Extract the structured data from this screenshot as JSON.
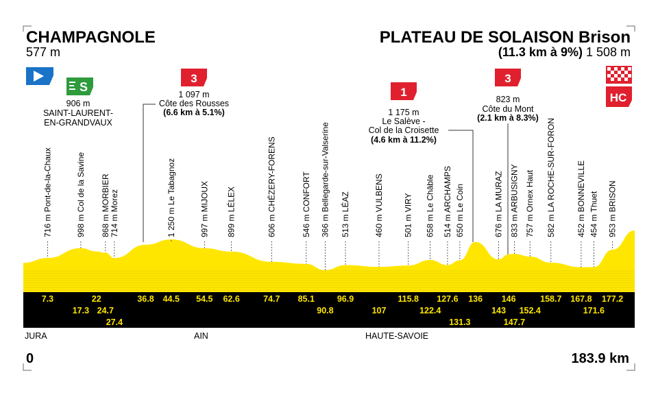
{
  "start": {
    "name": "CHAMPAGNOLE",
    "altitude": "577 m",
    "km": "0"
  },
  "finish": {
    "name": "PLATEAU DE SOLAISON Brison",
    "climb_detail": "(11.3 km à 9%)",
    "altitude": "1 508 m",
    "km": "183.9 km"
  },
  "colors": {
    "profile": "#ffe600",
    "band": "#000000",
    "km_text": "#ffe600",
    "sprint_green": "#2e9b3c",
    "climb_red": "#e0202e",
    "start_blue": "#1a73c7"
  },
  "icons": {
    "start": "start-flag-icon",
    "finish": "finish-checkered-flag-icon",
    "sprint": "sprint-s-icon",
    "climb": "climb-category-icon"
  },
  "regions": [
    "JURA",
    "AIN",
    "HAUTE-SAVOIE"
  ],
  "sprint": {
    "label": "S",
    "altitude": "906 m",
    "place_line1": "SAINT-LAURENT-",
    "place_line2": "EN-GRANDVAUX"
  },
  "climbs": [
    {
      "category": "3",
      "altitude": "1 097 m",
      "name": "Côte des Rousses",
      "detail": "(6.6 km à 5.1%)"
    },
    {
      "category": "1",
      "altitude": "1 175 m",
      "name_line1": "Le Salève -",
      "name_line2": "Col de la Croisette",
      "detail": "(4.6 km à 11.2%)"
    },
    {
      "category": "3",
      "altitude": "823 m",
      "name": "Côte du Mont",
      "detail": "(2.1 km à 8.3%)"
    },
    {
      "category": "HC"
    }
  ],
  "waypoints": [
    {
      "label": "716 m Pont-de-la-Chaux",
      "km": "7.3",
      "alt": 716
    },
    {
      "label": "998 m Col de la Savine",
      "km": "17.3",
      "alt": 998
    },
    {
      "label": "",
      "km": "22",
      "alt": 906
    },
    {
      "label": "868 m MORBIER",
      "km": "24.7",
      "alt": 868
    },
    {
      "label": "714 m Morez",
      "km": "27.4",
      "alt": 714
    },
    {
      "label": "",
      "km": "36.8",
      "alt": 1097
    },
    {
      "label": "1 250 m Le Tabagnoz",
      "km": "44.5",
      "alt": 1250
    },
    {
      "label": "997 m MIJOUX",
      "km": "54.5",
      "alt": 997
    },
    {
      "label": "899 m LÉLEX",
      "km": "62.6",
      "alt": 899
    },
    {
      "label": "606 m CHÉZERY-FORENS",
      "km": "74.7",
      "alt": 606
    },
    {
      "label": "546 m CONFORT",
      "km": "85.1",
      "alt": 546
    },
    {
      "label": "366 m Bellegarde-sur-Valserine",
      "km": "90.8",
      "alt": 366
    },
    {
      "label": "513 m LÉAZ",
      "km": "96.9",
      "alt": 513
    },
    {
      "label": "460 m VULBENS",
      "km": "107",
      "alt": 460
    },
    {
      "label": "501 m VIRY",
      "km": "115.8",
      "alt": 501
    },
    {
      "label": "658 m Le Châble",
      "km": "122.4",
      "alt": 658
    },
    {
      "label": "514 m ARCHAMPS",
      "km": "127.6",
      "alt": 514
    },
    {
      "label": "650 m Le Coin",
      "km": "131.3",
      "alt": 650
    },
    {
      "label": "",
      "km": "136",
      "alt": 1175
    },
    {
      "label": "676 m LA MURAZ",
      "km": "143",
      "alt": 676
    },
    {
      "label": "",
      "km": "146",
      "alt": 823
    },
    {
      "label": "833 m ARBUSIGNY",
      "km": "147.7",
      "alt": 833
    },
    {
      "label": "757 m Ornex Haut",
      "km": "152.4",
      "alt": 757
    },
    {
      "label": "582 m LA ROCHE-SUR-FORON",
      "km": "158.7",
      "alt": 582
    },
    {
      "label": "452 m BONNEVILLE",
      "km": "167.8",
      "alt": 452
    },
    {
      "label": "454 m Thuet",
      "km": "171.6",
      "alt": 454
    },
    {
      "label": "953 m BRISON",
      "km": "177.2",
      "alt": 953
    }
  ]
}
